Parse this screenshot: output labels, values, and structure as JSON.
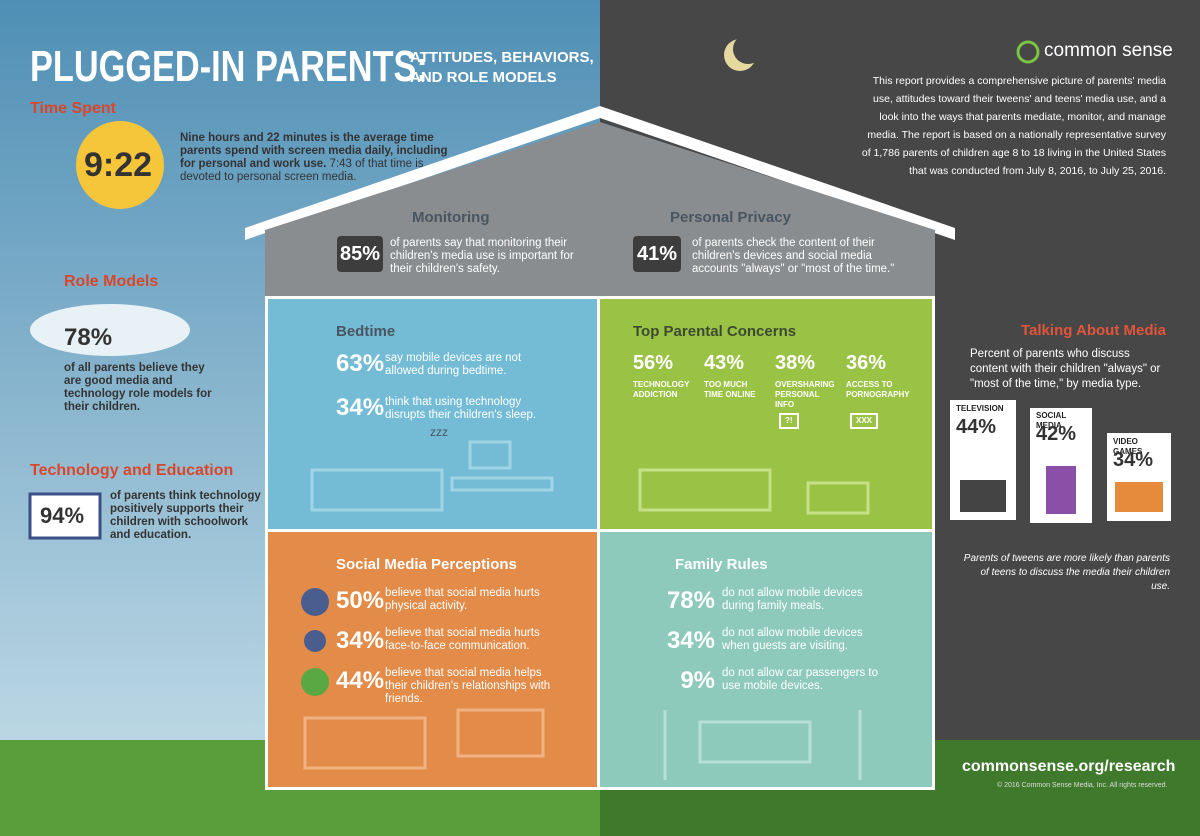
{
  "header": {
    "title": "PLUGGED-IN PARENTS:",
    "subtitle_lines": [
      "ATTITUDES, BEHAVIORS,",
      "AND ROLE MODELS"
    ]
  },
  "brand": {
    "name": "common sense",
    "intro": "This report provides a comprehensive picture of parents' media use, attitudes toward their tweens' and teens' media use, and a look into the ways that parents mediate, monitor, and manage media. The report is based on a nationally representative survey of 1,786 parents of children age 8 to 18 living in the United States that was conducted from July 8, 2016, to July 25, 2016."
  },
  "time_spent": {
    "heading": "Time Spent",
    "stat": "9:22",
    "text_bold": "Nine hours and 22 minutes is the average time parents spend with screen media daily, including for personal and work use.",
    "text": "7:43 of that time is devoted to personal screen media."
  },
  "role_models": {
    "heading": "Role Models",
    "stat": "78%",
    "text": "of all parents believe they are good media and technology role models for their children."
  },
  "tech_education": {
    "heading": "Technology and Education",
    "stat": "94%",
    "text": "of parents think technology positively supports their children with schoolwork and education."
  },
  "monitoring": {
    "heading": "Monitoring",
    "stat": "85%",
    "text": "of parents say that monitoring their children's media use is important for their children's safety."
  },
  "privacy": {
    "heading": "Personal Privacy",
    "stat": "41%",
    "text": "of parents check the content of their children's devices and social media accounts \"always\" or \"most of the time.\""
  },
  "bedtime": {
    "heading": "Bedtime",
    "items": [
      {
        "stat": "63%",
        "text": "say mobile devices are not allowed during bedtime."
      },
      {
        "stat": "34%",
        "text": "think that using technology disrupts their children's sleep."
      }
    ],
    "icon_text": "zzz"
  },
  "concerns": {
    "heading": "Top Parental Concerns",
    "items": [
      {
        "stat": "56%",
        "label": "TECHNOLOGY ADDICTION"
      },
      {
        "stat": "43%",
        "label": "TOO MUCH TIME ONLINE"
      },
      {
        "stat": "38%",
        "label": "OVERSHARING PERSONAL INFO",
        "icon_label": "?!"
      },
      {
        "stat": "36%",
        "label": "ACCESS TO PORNOGRAPHY",
        "icon_label": "XXX"
      }
    ]
  },
  "social_media": {
    "heading": "Social Media Perceptions",
    "items": [
      {
        "stat": "50%",
        "text": "believe that social media hurts physical activity."
      },
      {
        "stat": "34%",
        "text": "believe that social media hurts face-to-face communication."
      },
      {
        "stat": "44%",
        "text": "believe that social media helps their children's relationships with friends."
      }
    ]
  },
  "family_rules": {
    "heading": "Family Rules",
    "items": [
      {
        "stat": "78%",
        "text": "do not allow mobile devices during family meals."
      },
      {
        "stat": "34%",
        "text": "do not allow mobile devices when guests are visiting."
      },
      {
        "stat": "9%",
        "text": "do not allow car passengers to use mobile devices."
      }
    ]
  },
  "talking": {
    "heading": "Talking About Media",
    "description": "Percent of parents who discuss content with their children \"always\" or \"most of the time,\" by media type.",
    "cards": [
      {
        "label": "TELEVISION",
        "stat": "44%"
      },
      {
        "label": "SOCIAL MEDIA",
        "stat": "42%"
      },
      {
        "label": "VIDEO GAMES",
        "stat": "34%"
      }
    ],
    "note": "Parents of tweens are more likely than parents of teens to discuss the media their children use."
  },
  "footer": {
    "url": "commonsense.org/research",
    "copyright": "© 2016 Common Sense Media, Inc. All rights reserved."
  }
}
